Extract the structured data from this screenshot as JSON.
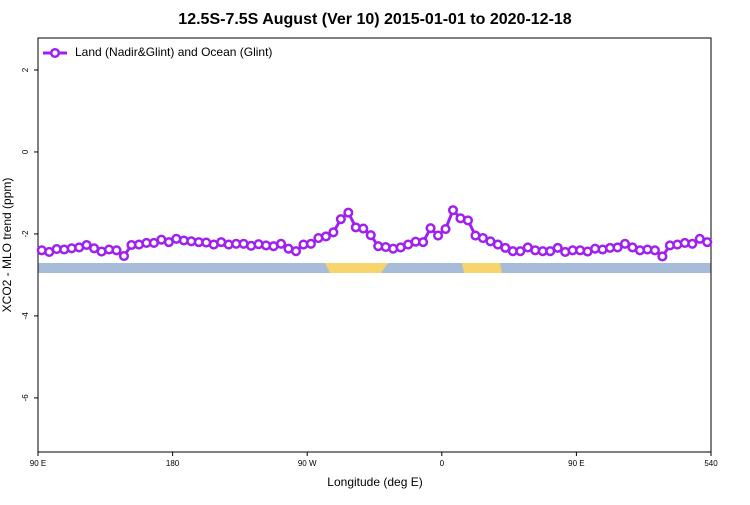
{
  "chart_data": {
    "type": "line",
    "title": "12.5S-7.5S August (Ver 10)   2015-01-01 to 2020-12-18",
    "x_label": "Longitude (deg E)",
    "y_label": "XCO2 - MLO trend (ppm)",
    "xlim": [
      90,
      540
    ],
    "ylim": [
      -7.32,
      2.78
    ],
    "xticks": [
      {
        "value": 90,
        "label": "90 E"
      },
      180,
      {
        "value": 270,
        "label": "90 W"
      },
      {
        "value": 360,
        "label": "0"
      },
      {
        "value": 450,
        "label": "90 E"
      },
      540
    ],
    "yticks": [
      -6,
      -4,
      -2,
      0,
      2
    ],
    "legend": "top-left",
    "grid": false,
    "x": [
      92.5,
      97.5,
      102.5,
      107.5,
      112.5,
      117.5,
      122.5,
      127.5,
      132.5,
      137.5,
      142.5,
      147.5,
      152.5,
      157.5,
      162.5,
      167.5,
      172.5,
      177.5,
      182.5,
      187.5,
      192.5,
      197.5,
      202.5,
      207.5,
      212.5,
      217.5,
      222.5,
      227.5,
      232.5,
      237.5,
      242.5,
      247.5,
      252.5,
      257.5,
      262.5,
      267.5,
      272.5,
      277.5,
      282.5,
      287.5,
      292.5,
      297.5,
      302.5,
      307.5,
      312.5,
      317.5,
      322.5,
      327.5,
      332.5,
      337.5,
      342.5,
      347.5,
      352.5,
      357.5,
      362.5,
      367.5,
      372.5,
      377.5,
      382.5,
      387.5,
      392.5,
      397.5,
      402.5,
      407.5,
      412.5,
      417.5,
      422.5,
      427.5,
      432.5,
      437.5,
      442.5,
      447.5,
      452.5,
      457.5,
      462.5,
      467.5,
      472.5,
      477.5,
      482.5,
      487.5,
      492.5,
      497.5,
      502.5,
      507.5,
      512.5,
      517.5,
      522.5,
      527.5,
      532.5,
      537.5
    ],
    "series": [
      {
        "name": "Land (Nadir&Glint) and Ocean (Glint)",
        "color": "#a020f0",
        "values": [
          -2.4,
          -2.44,
          -2.37,
          -2.38,
          -2.35,
          -2.33,
          -2.27,
          -2.35,
          -2.43,
          -2.38,
          -2.4,
          -2.54,
          -2.27,
          -2.26,
          -2.22,
          -2.22,
          -2.14,
          -2.2,
          -2.12,
          -2.16,
          -2.18,
          -2.2,
          -2.21,
          -2.26,
          -2.2,
          -2.26,
          -2.24,
          -2.24,
          -2.29,
          -2.25,
          -2.28,
          -2.3,
          -2.24,
          -2.36,
          -2.42,
          -2.26,
          -2.24,
          -2.1,
          -2.06,
          -1.96,
          -1.64,
          -1.48,
          -1.84,
          -1.87,
          -2.03,
          -2.3,
          -2.32,
          -2.36,
          -2.33,
          -2.26,
          -2.19,
          -2.2,
          -1.86,
          -2.04,
          -1.88,
          -1.42,
          -1.62,
          -1.67,
          -2.04,
          -2.1,
          -2.18,
          -2.26,
          -2.34,
          -2.42,
          -2.42,
          -2.33,
          -2.4,
          -2.42,
          -2.42,
          -2.34,
          -2.44,
          -2.4,
          -2.4,
          -2.43,
          -2.36,
          -2.38,
          -2.34,
          -2.33,
          -2.24,
          -2.33,
          -2.4,
          -2.38,
          -2.4,
          -2.55,
          -2.28,
          -2.26,
          -2.22,
          -2.24,
          -2.12,
          -2.2
        ]
      }
    ]
  }
}
